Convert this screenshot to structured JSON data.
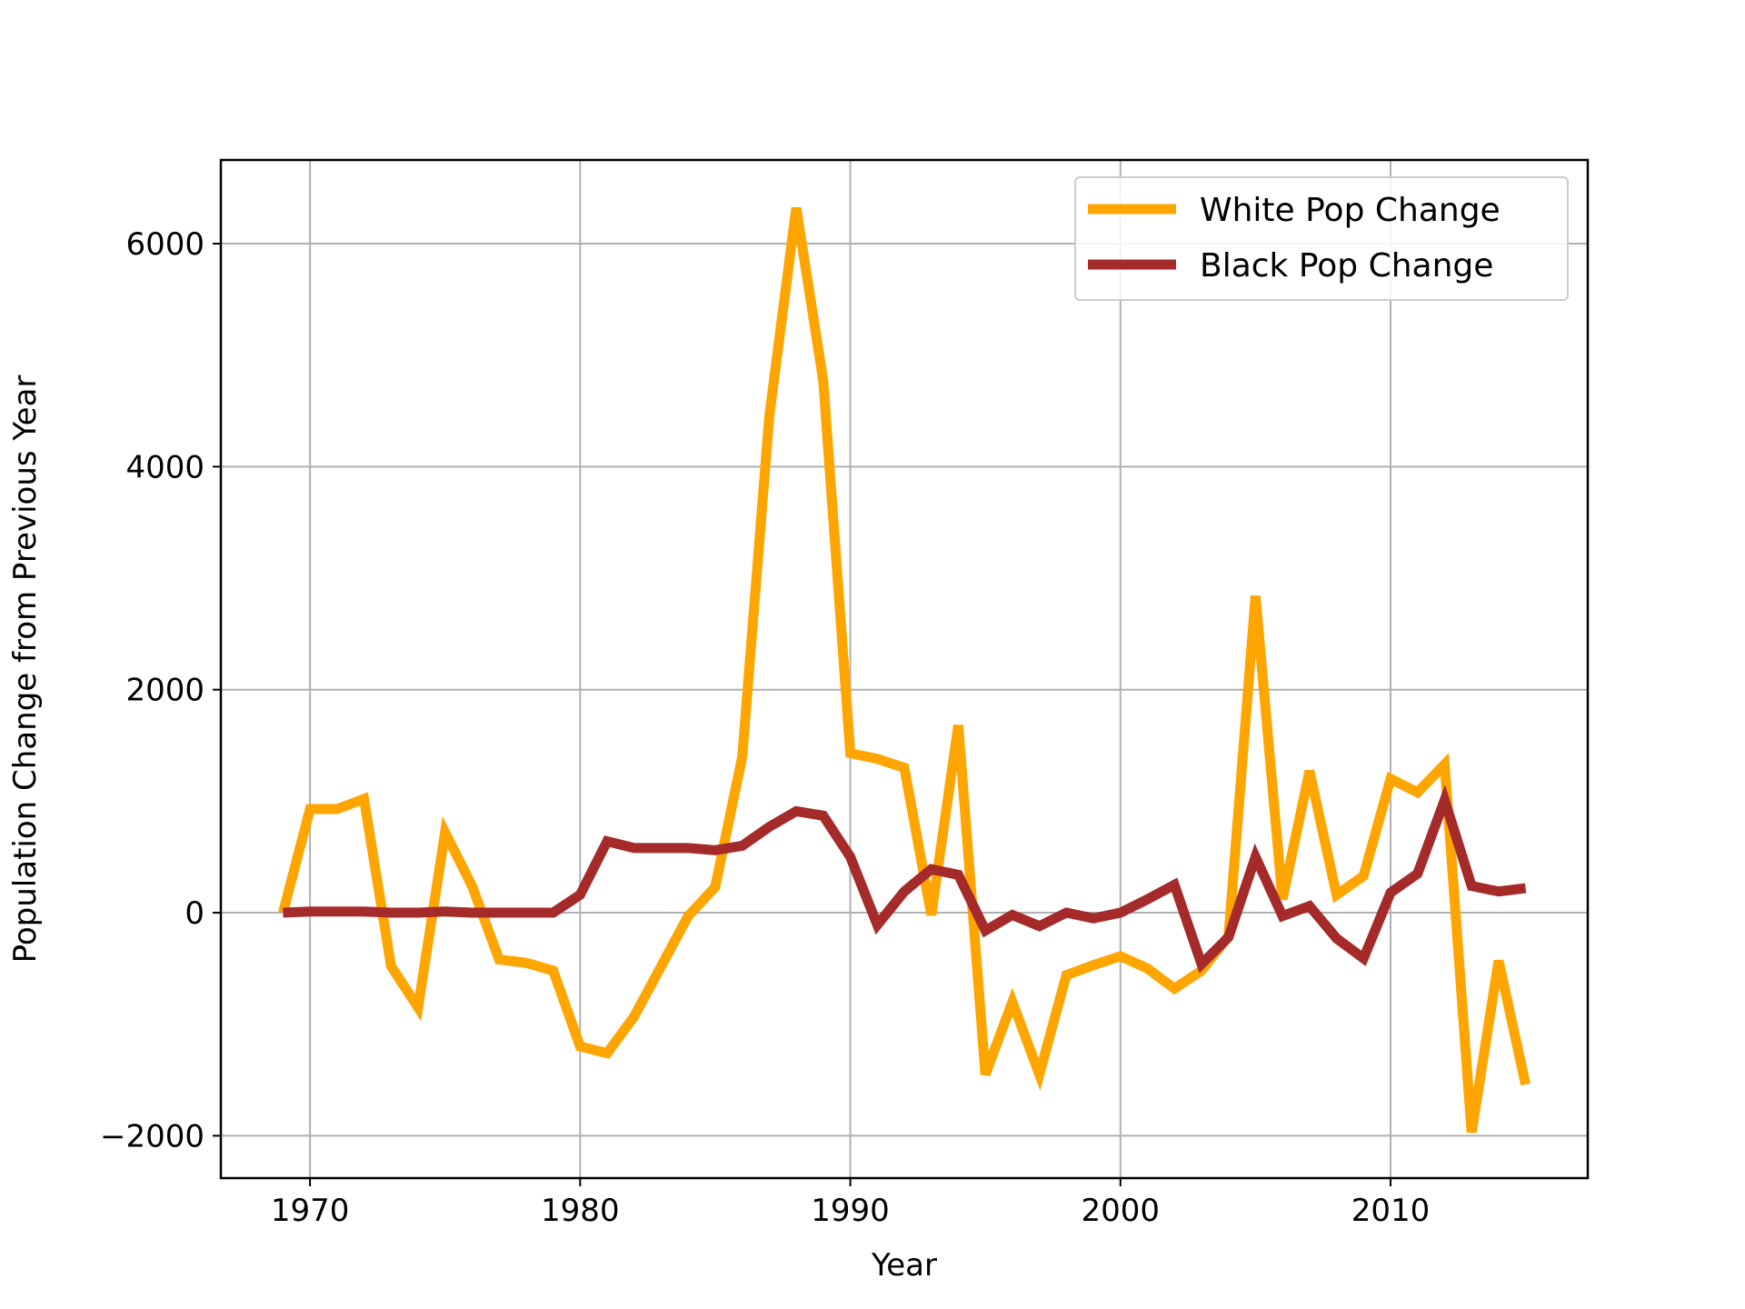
{
  "chart_data": {
    "type": "line",
    "xlabel": "Year",
    "ylabel": "Population Change from Previous Year",
    "xlim": [
      1966.7,
      2017.3
    ],
    "ylim": [
      -2380,
      6750
    ],
    "xticks": [
      1970,
      1980,
      1990,
      2000,
      2010
    ],
    "yticks": [
      -2000,
      0,
      2000,
      4000,
      6000
    ],
    "ytick_labels": [
      "−2000",
      "0",
      "2000",
      "4000",
      "6000"
    ],
    "grid": true,
    "legend_position": "top-right",
    "x": [
      1969,
      1970,
      1971,
      1972,
      1973,
      1974,
      1975,
      1976,
      1977,
      1978,
      1979,
      1980,
      1981,
      1982,
      1983,
      1984,
      1985,
      1986,
      1987,
      1988,
      1989,
      1990,
      1991,
      1992,
      1993,
      1994,
      1995,
      1996,
      1997,
      1998,
      1999,
      2000,
      2001,
      2002,
      2003,
      2004,
      2005,
      2006,
      2007,
      2008,
      2009,
      2010,
      2011,
      2012,
      2013,
      2014,
      2015
    ],
    "series": [
      {
        "name": "White Pop Change",
        "color": "#FFA500",
        "values": [
          0,
          930,
          930,
          1020,
          -480,
          -850,
          720,
          240,
          -420,
          -450,
          -520,
          -1200,
          -1260,
          -930,
          -480,
          -30,
          230,
          1400,
          4450,
          6320,
          4770,
          1430,
          1380,
          1300,
          -20,
          1680,
          -1450,
          -800,
          -1450,
          -560,
          -470,
          -390,
          -500,
          -680,
          -520,
          -210,
          2840,
          120,
          1270,
          160,
          330,
          1200,
          1080,
          1330,
          -1970,
          -430,
          -1540
        ]
      },
      {
        "name": "Black Pop Change",
        "color": "#A52A2A",
        "values": [
          0,
          10,
          10,
          10,
          0,
          0,
          10,
          0,
          0,
          0,
          0,
          160,
          640,
          580,
          580,
          580,
          560,
          600,
          770,
          910,
          870,
          500,
          -110,
          190,
          390,
          340,
          -160,
          -20,
          -120,
          0,
          -50,
          0,
          120,
          250,
          -460,
          -220,
          500,
          -30,
          60,
          -230,
          -410,
          180,
          350,
          1010,
          240,
          190,
          220
        ]
      }
    ]
  }
}
